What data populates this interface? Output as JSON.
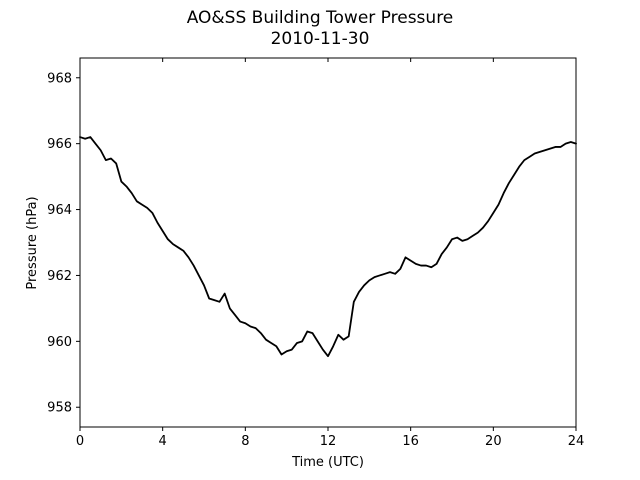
{
  "chart_data": {
    "type": "line",
    "title": "AO&SS Building Tower Pressure",
    "subtitle": "2010-11-30",
    "xlabel": "Time (UTC)",
    "ylabel": "Pressure (hPa)",
    "xlim": [
      0,
      24
    ],
    "ylim": [
      957.4,
      968.6
    ],
    "xticks": [
      0,
      4,
      8,
      12,
      16,
      20,
      24
    ],
    "yticks": [
      958,
      960,
      962,
      964,
      966,
      968
    ],
    "grid": false,
    "line_color": "#000000",
    "series": [
      {
        "x": [
          0.0,
          0.25,
          0.5,
          0.75,
          1.0,
          1.25,
          1.5,
          1.75,
          2.0,
          2.25,
          2.5,
          2.75,
          3.0,
          3.25,
          3.5,
          3.75,
          4.0,
          4.25,
          4.5,
          4.75,
          5.0,
          5.25,
          5.5,
          5.75,
          6.0,
          6.25,
          6.5,
          6.75,
          7.0,
          7.25,
          7.5,
          7.75,
          8.0,
          8.25,
          8.5,
          8.75,
          9.0,
          9.25,
          9.5,
          9.75,
          10.0,
          10.25,
          10.5,
          10.75,
          11.0,
          11.25,
          11.5,
          11.75,
          12.0,
          12.25,
          12.5,
          12.75,
          13.0,
          13.25,
          13.5,
          13.75,
          14.0,
          14.25,
          14.5,
          14.75,
          15.0,
          15.25,
          15.5,
          15.75,
          16.0,
          16.25,
          16.5,
          16.75,
          17.0,
          17.25,
          17.5,
          17.75,
          18.0,
          18.25,
          18.5,
          18.75,
          19.0,
          19.25,
          19.5,
          19.75,
          20.0,
          20.25,
          20.5,
          20.75,
          21.0,
          21.25,
          21.5,
          21.75,
          22.0,
          22.25,
          22.5,
          22.75,
          23.0,
          23.25,
          23.5,
          23.75,
          24.0
        ],
        "values": [
          966.2,
          966.15,
          966.2,
          966.0,
          965.8,
          965.5,
          965.55,
          965.4,
          964.85,
          964.7,
          964.5,
          964.25,
          964.15,
          964.05,
          963.9,
          963.6,
          963.35,
          963.1,
          962.95,
          962.85,
          962.75,
          962.55,
          962.3,
          962.0,
          961.7,
          961.3,
          961.25,
          961.2,
          961.45,
          961.0,
          960.8,
          960.6,
          960.55,
          960.45,
          960.4,
          960.25,
          960.05,
          959.95,
          959.85,
          959.6,
          959.7,
          959.75,
          959.95,
          960.0,
          960.3,
          960.25,
          960.0,
          959.75,
          959.55,
          959.85,
          960.2,
          960.05,
          960.15,
          961.2,
          961.5,
          961.7,
          961.85,
          961.95,
          962.0,
          962.05,
          962.1,
          962.05,
          962.2,
          962.55,
          962.45,
          962.35,
          962.3,
          962.3,
          962.25,
          962.35,
          962.65,
          962.85,
          963.1,
          963.15,
          963.05,
          963.1,
          963.2,
          963.3,
          963.45,
          963.65,
          963.9,
          964.15,
          964.5,
          964.8,
          965.05,
          965.3,
          965.5,
          965.6,
          965.7,
          965.75,
          965.8,
          965.85,
          965.9,
          965.9,
          966.0,
          966.05,
          966.0
        ]
      }
    ]
  }
}
